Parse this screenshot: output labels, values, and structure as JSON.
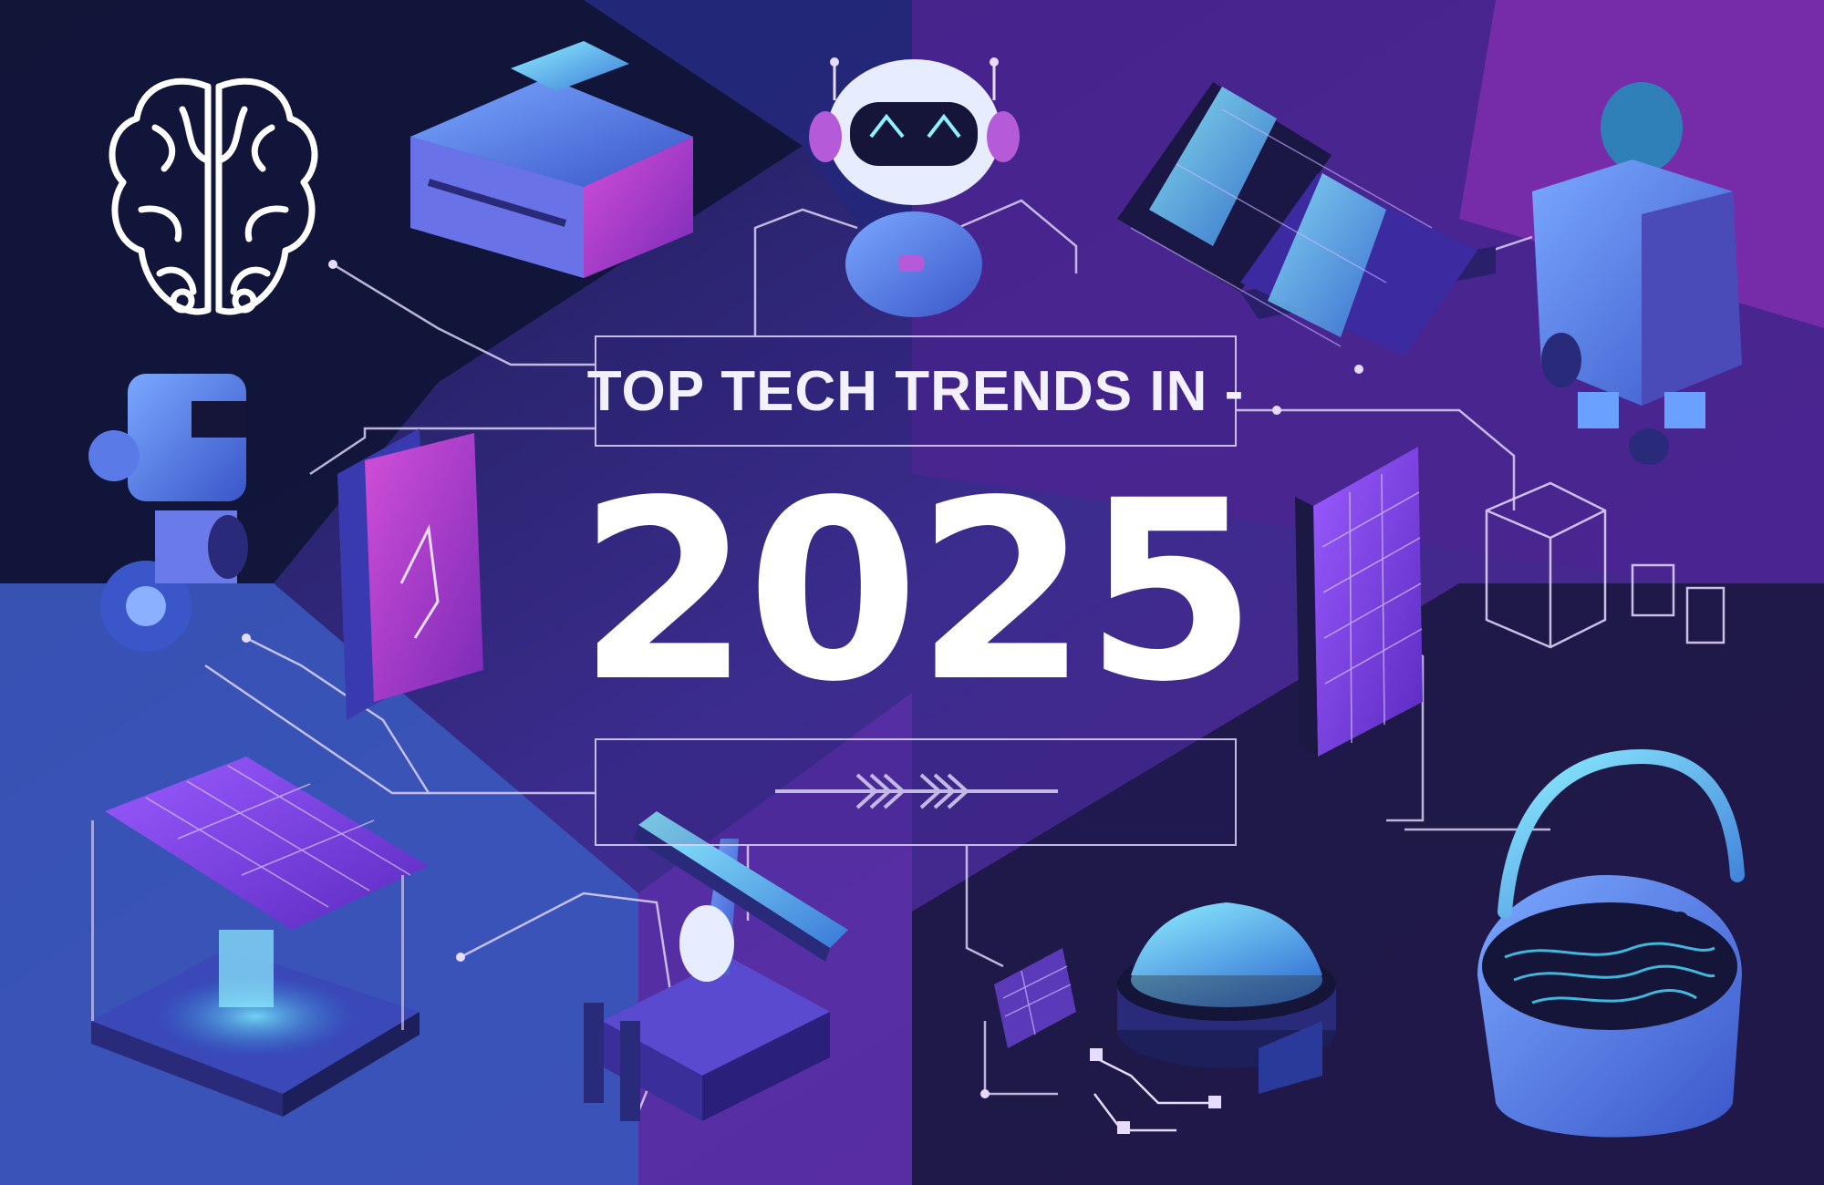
{
  "headline": {
    "title": "TOP TECH TRENDS IN -",
    "year": "2025"
  },
  "palette": {
    "navy": "#141a45",
    "indigo": "#2a2f8a",
    "blue": "#3a63c8",
    "violet": "#6a2aa8",
    "magenta": "#b23fc7",
    "cyan": "#49c8f0",
    "line": "#e6dcff"
  },
  "illustrations": [
    "brain-icon",
    "vr-headset-icon",
    "ai-robot-icon",
    "solar-panels-icon",
    "humanoid-robot-icon",
    "wheeled-robot-icon",
    "smartphone-icon",
    "solar-wall-panel-icon",
    "cube-outline-icon",
    "arrow-chevrons-icon",
    "solar-station-icon",
    "robotic-arm-icon",
    "circuit-node-icon",
    "drone-dome-icon",
    "quantum-basin-icon"
  ]
}
